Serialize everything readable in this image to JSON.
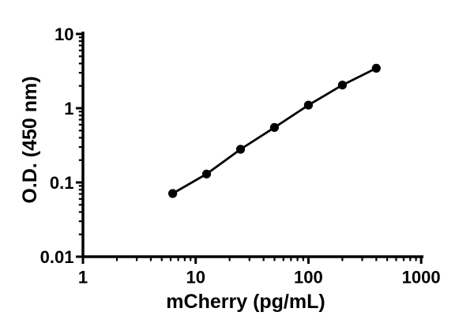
{
  "figure": {
    "background": "#ffffff"
  },
  "chart_data": {
    "type": "line",
    "x": [
      6.25,
      12.5,
      25,
      50,
      100,
      200,
      400
    ],
    "y": [
      0.071,
      0.13,
      0.28,
      0.55,
      1.1,
      2.05,
      3.45
    ],
    "xlabel": "mCherry (pg/mL)",
    "ylabel": "O.D. (450 nm)",
    "xscale": "log",
    "yscale": "log",
    "xlim": [
      1,
      1000
    ],
    "ylim": [
      0.01,
      10
    ],
    "x_ticks": {
      "values": [
        1,
        10,
        100,
        1000
      ],
      "labels": [
        "1",
        "10",
        "100",
        "1000"
      ]
    },
    "y_ticks": {
      "values": [
        0.01,
        0.1,
        1,
        10
      ],
      "labels": [
        "0.01",
        "0.1",
        "1",
        "10"
      ]
    },
    "grid": false,
    "legend": false,
    "marker": "filled-circle",
    "line_color": "#000000",
    "marker_color": "#000000",
    "axis_color": "#000000"
  }
}
